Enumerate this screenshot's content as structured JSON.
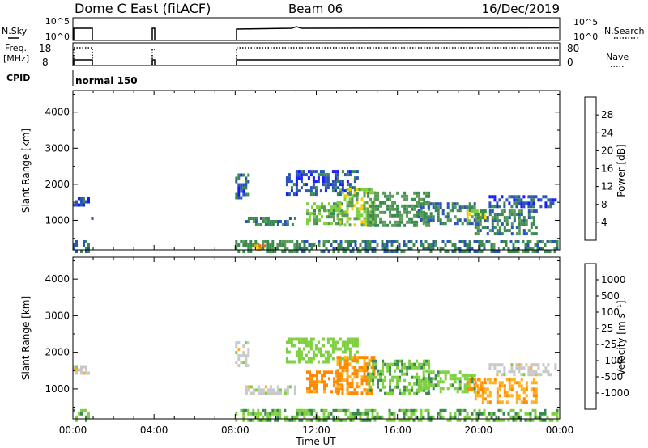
{
  "header": {
    "title": "Dome C East (fitACF)",
    "beam": "Beam 06",
    "date": "16/Dec/2019"
  },
  "strips": {
    "nsky_label": "N.Sky",
    "nsky_ticks": [
      "10^5",
      "10^0"
    ],
    "nsearch_label": "N.Search",
    "nsearch_ticks": [
      "10^5",
      "10^0"
    ],
    "freq_label": "Freq.",
    "freq_unit": "[MHz]",
    "freq_ticks": [
      "18",
      "8"
    ],
    "nave_label": "Nave",
    "nave_ticks": [
      "80",
      "0"
    ],
    "cpid_label": "CPID",
    "cpid_value": "normal 150"
  },
  "colors": {
    "power_scale": [
      "#1a1aff",
      "#2a55b0",
      "#3a8a50",
      "#5c9a5a",
      "#7ed040",
      "#f0d000",
      "#f0a000",
      "#ff6000",
      "#ff2000"
    ],
    "velocity_scale": [
      "#ff0000",
      "#ff5a00",
      "#ff8a00",
      "#ffb020",
      "#c8c8c8",
      "#c8c8c8",
      "#7ed040",
      "#3a8a50",
      "#2a55b0",
      "#1a1aff"
    ]
  },
  "chart_data": [
    {
      "type": "heatmap",
      "name": "power",
      "ylabel": "Slant Range [km]",
      "yticks": [
        "1000",
        "2000",
        "3000",
        "4000"
      ],
      "ylim": [
        180,
        4600
      ],
      "xlim": [
        0,
        24
      ],
      "colorbar_label": "Power [dB]",
      "colorbar_ticks": [
        "4",
        "8",
        "12",
        "16",
        "20",
        "24",
        "28"
      ],
      "colorbar_range": [
        0,
        32
      ],
      "echo_regions": [
        {
          "t0": 0.0,
          "t1": 0.8,
          "r0": 1450,
          "r1": 1650,
          "val": 6
        },
        {
          "t0": 0.9,
          "t1": 1.0,
          "r0": 950,
          "r1": 1100,
          "val": 6
        },
        {
          "t0": 0.0,
          "t1": 0.8,
          "r0": 180,
          "r1": 450,
          "val": 8
        },
        {
          "t0": 8.0,
          "t1": 8.6,
          "r0": 1600,
          "r1": 2300,
          "val": 6
        },
        {
          "t0": 8.5,
          "t1": 11.0,
          "r0": 900,
          "r1": 1100,
          "val": 10
        },
        {
          "t0": 8.0,
          "t1": 11.5,
          "r0": 180,
          "r1": 450,
          "val": 12
        },
        {
          "t0": 8.8,
          "t1": 9.4,
          "r0": 180,
          "r1": 330,
          "val": 26
        },
        {
          "t0": 10.5,
          "t1": 14.0,
          "r0": 1700,
          "r1": 2400,
          "val": 6
        },
        {
          "t0": 11.5,
          "t1": 13.2,
          "r0": 900,
          "r1": 1500,
          "val": 15
        },
        {
          "t0": 13.0,
          "t1": 14.8,
          "r0": 900,
          "r1": 1900,
          "val": 18
        },
        {
          "t0": 14.5,
          "t1": 17.5,
          "r0": 900,
          "r1": 1800,
          "val": 12
        },
        {
          "t0": 17.0,
          "t1": 19.8,
          "r0": 900,
          "r1": 1500,
          "val": 9
        },
        {
          "t0": 19.4,
          "t1": 20.4,
          "r0": 1000,
          "r1": 1300,
          "val": 20
        },
        {
          "t0": 19.8,
          "t1": 22.8,
          "r0": 600,
          "r1": 1300,
          "val": 10
        },
        {
          "t0": 20.5,
          "t1": 23.8,
          "r0": 1400,
          "r1": 1700,
          "val": 6
        },
        {
          "t0": 11.0,
          "t1": 23.9,
          "r0": 180,
          "r1": 450,
          "val": 9
        }
      ]
    },
    {
      "type": "heatmap",
      "name": "velocity",
      "ylabel": "Slant Range [km]",
      "yticks": [
        "1000",
        "2000",
        "3000",
        "4000"
      ],
      "ylim": [
        180,
        4600
      ],
      "xlim": [
        0,
        24
      ],
      "xlabel": "Time UT",
      "xticks": [
        "00:00",
        "04:00",
        "08:00",
        "12:00",
        "16:00",
        "20:00",
        "00:00"
      ],
      "colorbar_label": "Velocity [m s⁻¹]",
      "colorbar_ticks": [
        "-1000",
        "-500",
        "-100",
        "-25",
        "25",
        "100",
        "500",
        "1000"
      ],
      "echo_regions": [
        {
          "t0": 0.0,
          "t1": 0.8,
          "r0": 1450,
          "r1": 1650,
          "val": 0
        },
        {
          "t0": 0.9,
          "t1": 1.0,
          "r0": 950,
          "r1": 1100,
          "val": 80
        },
        {
          "t0": 0.0,
          "t1": 0.8,
          "r0": 180,
          "r1": 450,
          "val": 90
        },
        {
          "t0": 8.0,
          "t1": 8.6,
          "r0": 1600,
          "r1": 2300,
          "val": 0
        },
        {
          "t0": 8.5,
          "t1": 11.0,
          "r0": 900,
          "r1": 1100,
          "val": 0
        },
        {
          "t0": 8.0,
          "t1": 11.5,
          "r0": 180,
          "r1": 450,
          "val": 80
        },
        {
          "t0": 10.5,
          "t1": 14.0,
          "r0": 1700,
          "r1": 2400,
          "val": 60
        },
        {
          "t0": 11.5,
          "t1": 13.2,
          "r0": 900,
          "r1": 1500,
          "val": -150
        },
        {
          "t0": 13.0,
          "t1": 14.8,
          "r0": 900,
          "r1": 1900,
          "val": -120
        },
        {
          "t0": 14.5,
          "t1": 17.5,
          "r0": 900,
          "r1": 1800,
          "val": 90
        },
        {
          "t0": 17.0,
          "t1": 19.8,
          "r0": 900,
          "r1": 1500,
          "val": 80
        },
        {
          "t0": 19.4,
          "t1": 20.4,
          "r0": 1000,
          "r1": 1300,
          "val": -150
        },
        {
          "t0": 19.8,
          "t1": 22.8,
          "r0": 600,
          "r1": 1300,
          "val": -80
        },
        {
          "t0": 20.5,
          "t1": 23.8,
          "r0": 1400,
          "r1": 1700,
          "val": 0
        },
        {
          "t0": 11.0,
          "t1": 23.9,
          "r0": 180,
          "r1": 450,
          "val": 90
        }
      ]
    }
  ]
}
